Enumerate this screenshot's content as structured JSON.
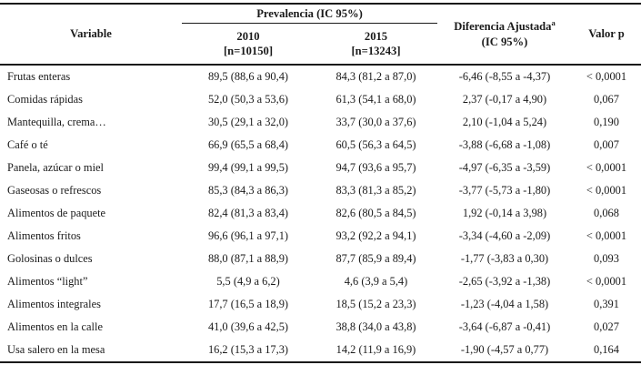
{
  "colors": {
    "text": "#1a1a1a",
    "rule": "#1a1a1a",
    "background": "#ffffff"
  },
  "table": {
    "header": {
      "variable": "Variable",
      "group_prevalencia": "Prevalencia (IC 95%)",
      "y2010_line1": "2010",
      "y2010_line2": "[n=10150]",
      "y2015_line1": "2015",
      "y2015_line2": "[n=13243]",
      "diferencia_line1": "Diferencia Ajustada",
      "diferencia_sup": "a",
      "diferencia_line2": "(IC 95%)",
      "valor_p": "Valor p"
    },
    "rows": [
      {
        "variable": "Frutas enteras",
        "prev_2010": "89,5 (88,6 a 90,4)",
        "prev_2015": "84,3 (81,2 a 87,0)",
        "diferencia": "-6,46 (-8,55 a -4,37)",
        "valor_p": "< 0,0001"
      },
      {
        "variable": "Comidas rápidas",
        "prev_2010": "52,0 (50,3 a 53,6)",
        "prev_2015": "61,3 (54,1 a 68,0)",
        "diferencia": "2,37 (-0,17 a 4,90)",
        "valor_p": "0,067"
      },
      {
        "variable": "Mantequilla, crema…",
        "prev_2010": "30,5 (29,1 a 32,0)",
        "prev_2015": "33,7 (30,0 a 37,6)",
        "diferencia": "2,10 (-1,04 a 5,24)",
        "valor_p": "0,190"
      },
      {
        "variable": "Café o té",
        "prev_2010": "66,9 (65,5 a 68,4)",
        "prev_2015": "60,5 (56,3 a 64,5)",
        "diferencia": "-3,88 (-6,68 a -1,08)",
        "valor_p": "0,007"
      },
      {
        "variable": "Panela, azúcar o miel",
        "prev_2010": "99,4 (99,1 a 99,5)",
        "prev_2015": "94,7 (93,6 a 95,7)",
        "diferencia": "-4,97 (-6,35 a -3,59)",
        "valor_p": "< 0,0001"
      },
      {
        "variable": "Gaseosas o refrescos",
        "prev_2010": "85,3 (84,3 a 86,3)",
        "prev_2015": "83,3 (81,3 a 85,2)",
        "diferencia": "-3,77 (-5,73 a -1,80)",
        "valor_p": "< 0,0001"
      },
      {
        "variable": "Alimentos de paquete",
        "prev_2010": "82,4 (81,3 a 83,4)",
        "prev_2015": "82,6 (80,5 a 84,5)",
        "diferencia": "1,92 (-0,14 a 3,98)",
        "valor_p": "0,068"
      },
      {
        "variable": "Alimentos fritos",
        "prev_2010": "96,6 (96,1 a 97,1)",
        "prev_2015": "93,2 (92,2 a 94,1)",
        "diferencia": "-3,34 (-4,60 a -2,09)",
        "valor_p": "< 0,0001"
      },
      {
        "variable": "Golosinas o dulces",
        "prev_2010": "88,0 (87,1 a 88,9)",
        "prev_2015": "87,7 (85,9 a 89,4)",
        "diferencia": "-1,77 (-3,83 a 0,30)",
        "valor_p": "0,093"
      },
      {
        "variable": "Alimentos “light”",
        "prev_2010": "5,5 (4,9 a 6,2)",
        "prev_2015": "4,6 (3,9 a 5,4)",
        "diferencia": "-2,65 (-3,92 a -1,38)",
        "valor_p": "< 0,0001"
      },
      {
        "variable": "Alimentos integrales",
        "prev_2010": "17,7 (16,5 a 18,9)",
        "prev_2015": "18,5 (15,2 a 23,3)",
        "diferencia": "-1,23 (-4,04 a 1,58)",
        "valor_p": "0,391"
      },
      {
        "variable": "Alimentos en la calle",
        "prev_2010": "41,0 (39,6 a 42,5)",
        "prev_2015": "38,8 (34,0 a 43,8)",
        "diferencia": "-3,64 (-6,87 a -0,41)",
        "valor_p": "0,027"
      },
      {
        "variable": "Usa salero en la mesa",
        "prev_2010": "16,2 (15,3 a 17,3)",
        "prev_2015": "14,2 (11,9 a 16,9)",
        "diferencia": "-1,90 (-4,57 a 0,77)",
        "valor_p": "0,164"
      }
    ]
  }
}
